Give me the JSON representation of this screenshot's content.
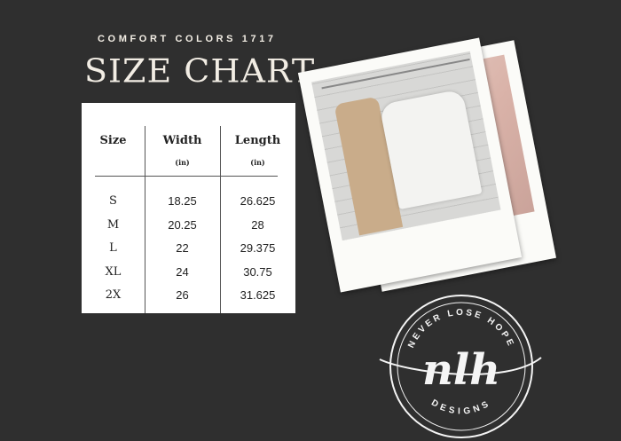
{
  "header": {
    "subtitle": "COMFORT COLORS 1717",
    "title": "SIZE CHART"
  },
  "table": {
    "columns": [
      {
        "label": "Size",
        "unit": ""
      },
      {
        "label": "Width",
        "unit": "(in)"
      },
      {
        "label": "Length",
        "unit": "(in)"
      }
    ],
    "rows": [
      {
        "size": "S",
        "width": "18.25",
        "length": "26.625"
      },
      {
        "size": "M",
        "width": "20.25",
        "length": "28"
      },
      {
        "size": "L",
        "width": "22",
        "length": "29.375"
      },
      {
        "size": "XL",
        "width": "24",
        "length": "30.75"
      },
      {
        "size": "2X",
        "width": "26",
        "length": "31.625"
      }
    ]
  },
  "logo": {
    "monogram": "nlh",
    "top_text": "NEVER LOSE HOPE",
    "bottom_text": "DESIGNS"
  },
  "colors": {
    "background": "#2f2f2f",
    "text_light": "#f2ede4",
    "card": "#ffffff"
  }
}
